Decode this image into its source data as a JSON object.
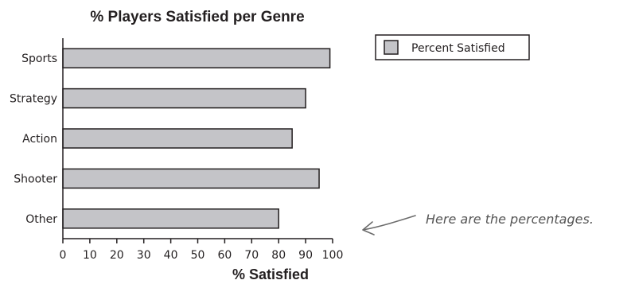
{
  "chart_data": {
    "type": "bar",
    "orientation": "horizontal",
    "title": "% Players Satisfied per Genre",
    "xlabel": "% Satisfied",
    "ylabel": "",
    "categories": [
      "Sports",
      "Strategy",
      "Action",
      "Shooter",
      "Other"
    ],
    "series": [
      {
        "name": "Percent Satisfied",
        "values": [
          99,
          90,
          85,
          95,
          80
        ]
      }
    ],
    "xlim": [
      0,
      100
    ],
    "xticks": [
      0,
      10,
      20,
      30,
      40,
      50,
      60,
      70,
      80,
      90,
      100
    ],
    "grid": false,
    "legend_position": "top-right",
    "bar_color": "#c4c4c8",
    "bar_edge_color": "#231f20"
  },
  "annotation": {
    "text": "Here are the percentages."
  }
}
